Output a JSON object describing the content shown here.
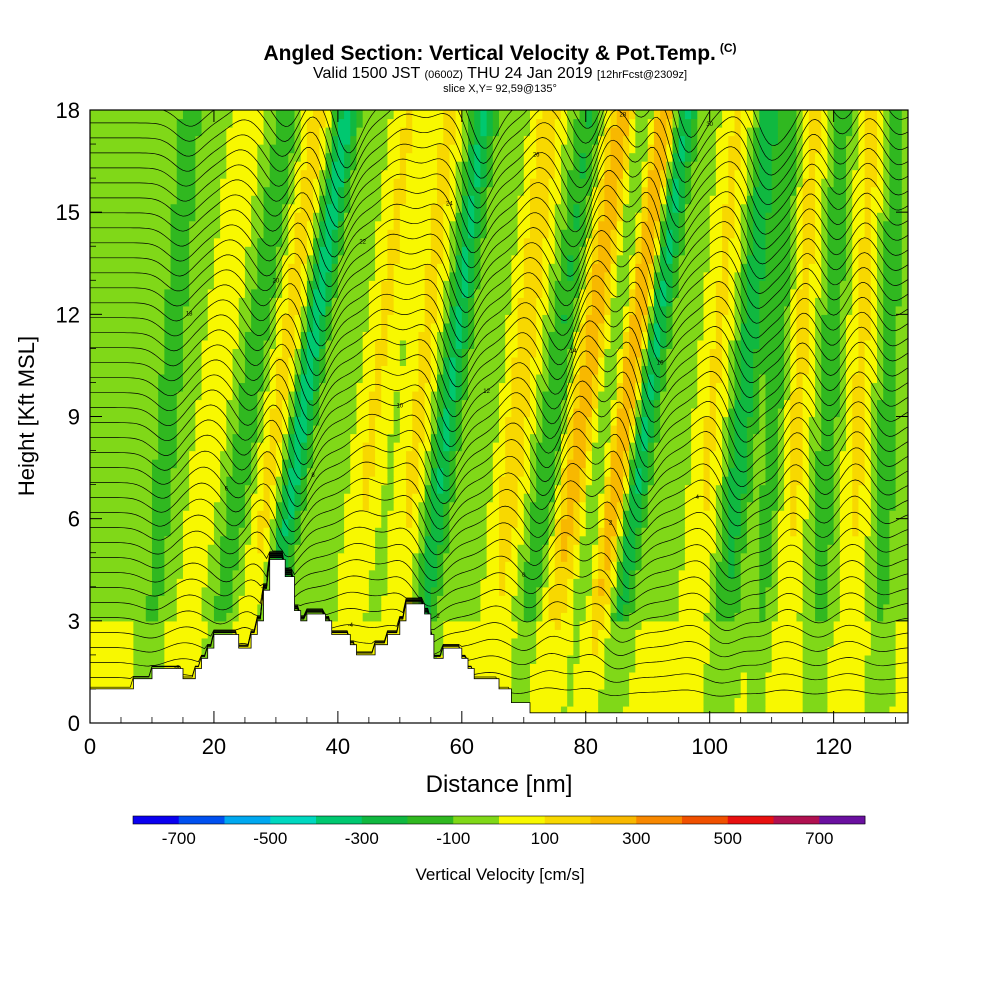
{
  "header": {
    "title": "Angled Section: Vertical Velocity & Pot.Temp.",
    "title_mark": "(C)",
    "valid_prefix": "Valid 1500 JST",
    "valid_zulu": "(0600Z)",
    "valid_date": "THU 24 Jan 2019",
    "valid_fcst": "[12hrFcst@2309z]",
    "slice": "slice X,Y= 92,59@135°"
  },
  "chart_data": {
    "type": "heatmap",
    "xlabel": "Distance [nm]",
    "ylabel": "Height [Kft MSL]",
    "xlim": [
      0,
      132
    ],
    "ylim": [
      0,
      18
    ],
    "x_ticks": [
      "0",
      "20",
      "40",
      "60",
      "80",
      "100",
      "120"
    ],
    "y_ticks": [
      "0",
      "3",
      "6",
      "9",
      "12",
      "15",
      "18"
    ],
    "colorbar": {
      "label": "Vertical Velocity [cm/s]",
      "tick_labels": [
        "-700",
        "-500",
        "-300",
        "-100",
        "100",
        "300",
        "500",
        "700"
      ],
      "bins": [
        -800,
        -700,
        -600,
        -500,
        -400,
        -300,
        -200,
        -100,
        0,
        100,
        200,
        300,
        400,
        500,
        600,
        700,
        800
      ],
      "colors": [
        "#0a00f0",
        "#0050f0",
        "#00a8f0",
        "#00d8c0",
        "#00c870",
        "#10b840",
        "#30b820",
        "#80d818",
        "#f8f800",
        "#f8d800",
        "#f8b800",
        "#f88800",
        "#f05000",
        "#e81010",
        "#b01050",
        "#6a10a0"
      ]
    },
    "terrain_profile_kft": [
      [
        0,
        1.0
      ],
      [
        7,
        1.0
      ],
      [
        7,
        1.3
      ],
      [
        10,
        1.3
      ],
      [
        10,
        1.6
      ],
      [
        15,
        1.6
      ],
      [
        15,
        1.3
      ],
      [
        17,
        1.3
      ],
      [
        17,
        1.6
      ],
      [
        18,
        1.6
      ],
      [
        18,
        1.9
      ],
      [
        19,
        1.9
      ],
      [
        19,
        2.2
      ],
      [
        20,
        2.2
      ],
      [
        20,
        2.6
      ],
      [
        24,
        2.6
      ],
      [
        24,
        2.2
      ],
      [
        26,
        2.2
      ],
      [
        26,
        2.6
      ],
      [
        27,
        2.6
      ],
      [
        27,
        3.0
      ],
      [
        28,
        3.0
      ],
      [
        28,
        3.9
      ],
      [
        29,
        3.9
      ],
      [
        29,
        4.8
      ],
      [
        31.5,
        4.8
      ],
      [
        31.5,
        4.3
      ],
      [
        33,
        4.3
      ],
      [
        33,
        3.3
      ],
      [
        34,
        3.3
      ],
      [
        34,
        3.0
      ],
      [
        35,
        3.0
      ],
      [
        35,
        3.2
      ],
      [
        38,
        3.2
      ],
      [
        38,
        3.0
      ],
      [
        39,
        3.0
      ],
      [
        39,
        2.6
      ],
      [
        42,
        2.6
      ],
      [
        42,
        2.3
      ],
      [
        43,
        2.3
      ],
      [
        43,
        2.0
      ],
      [
        46,
        2.0
      ],
      [
        46,
        2.3
      ],
      [
        48,
        2.3
      ],
      [
        48,
        2.6
      ],
      [
        50,
        2.6
      ],
      [
        50,
        3.0
      ],
      [
        51,
        3.0
      ],
      [
        51,
        3.5
      ],
      [
        54,
        3.5
      ],
      [
        54,
        3.2
      ],
      [
        55,
        3.2
      ],
      [
        55,
        2.6
      ],
      [
        55.5,
        2.6
      ],
      [
        55.5,
        1.9
      ],
      [
        57,
        1.9
      ],
      [
        57,
        2.2
      ],
      [
        60,
        2.2
      ],
      [
        60,
        1.9
      ],
      [
        61,
        1.9
      ],
      [
        61,
        1.6
      ],
      [
        62,
        1.6
      ],
      [
        62,
        1.3
      ],
      [
        66,
        1.3
      ],
      [
        66,
        1.0
      ],
      [
        68,
        1.0
      ],
      [
        68,
        0.6
      ],
      [
        71,
        0.6
      ],
      [
        71,
        0.3
      ],
      [
        132,
        0.3
      ]
    ],
    "updraft_bands": [
      {
        "x_base": 14,
        "lean": 0.4,
        "velocity": 120
      },
      {
        "x_base": 24,
        "lean": 0.45,
        "velocity": 180
      },
      {
        "x_base": 40,
        "lean": 0.4,
        "velocity": 150
      },
      {
        "x_base": 48,
        "lean": 0.35,
        "velocity": 160
      },
      {
        "x_base": 64,
        "lean": 0.35,
        "velocity": 200
      },
      {
        "x_base": 73,
        "lean": 0.45,
        "velocity": 300
      },
      {
        "x_base": 80,
        "lean": 0.45,
        "velocity": 380
      },
      {
        "x_base": 96,
        "lean": 0.3,
        "velocity": 150
      },
      {
        "x_base": 111,
        "lean": 0.2,
        "velocity": 180
      },
      {
        "x_base": 122,
        "lean": 0.15,
        "velocity": 160
      }
    ],
    "downdraft_bands": [
      {
        "x_base": 9,
        "lean": 0.25,
        "velocity": -120
      },
      {
        "x_base": 19,
        "lean": 0.45,
        "velocity": -150
      },
      {
        "x_base": 27,
        "lean": 0.5,
        "velocity": -330
      },
      {
        "x_base": 52,
        "lean": 0.4,
        "velocity": -280
      },
      {
        "x_base": 69,
        "lean": 0.4,
        "velocity": -170
      },
      {
        "x_base": 77,
        "lean": 0.45,
        "velocity": -130
      },
      {
        "x_base": 83,
        "lean": 0.45,
        "velocity": -340
      },
      {
        "x_base": 101,
        "lean": 0.3,
        "velocity": -240
      },
      {
        "x_base": 108,
        "lean": 0.2,
        "velocity": -140
      },
      {
        "x_base": 117,
        "lean": 0.15,
        "velocity": -130
      },
      {
        "x_base": 127,
        "lean": 0.1,
        "velocity": -120
      }
    ],
    "isentrope_count": 40,
    "isentrope_labels_sample": [
      "-8",
      "-6",
      "-4",
      "-2",
      "0",
      "2",
      "4",
      "6",
      "8",
      "10",
      "12",
      "14",
      "16",
      "18",
      "20",
      "22",
      "24",
      "26",
      "28",
      "30",
      "32",
      "34",
      "36",
      "38",
      "40"
    ]
  }
}
